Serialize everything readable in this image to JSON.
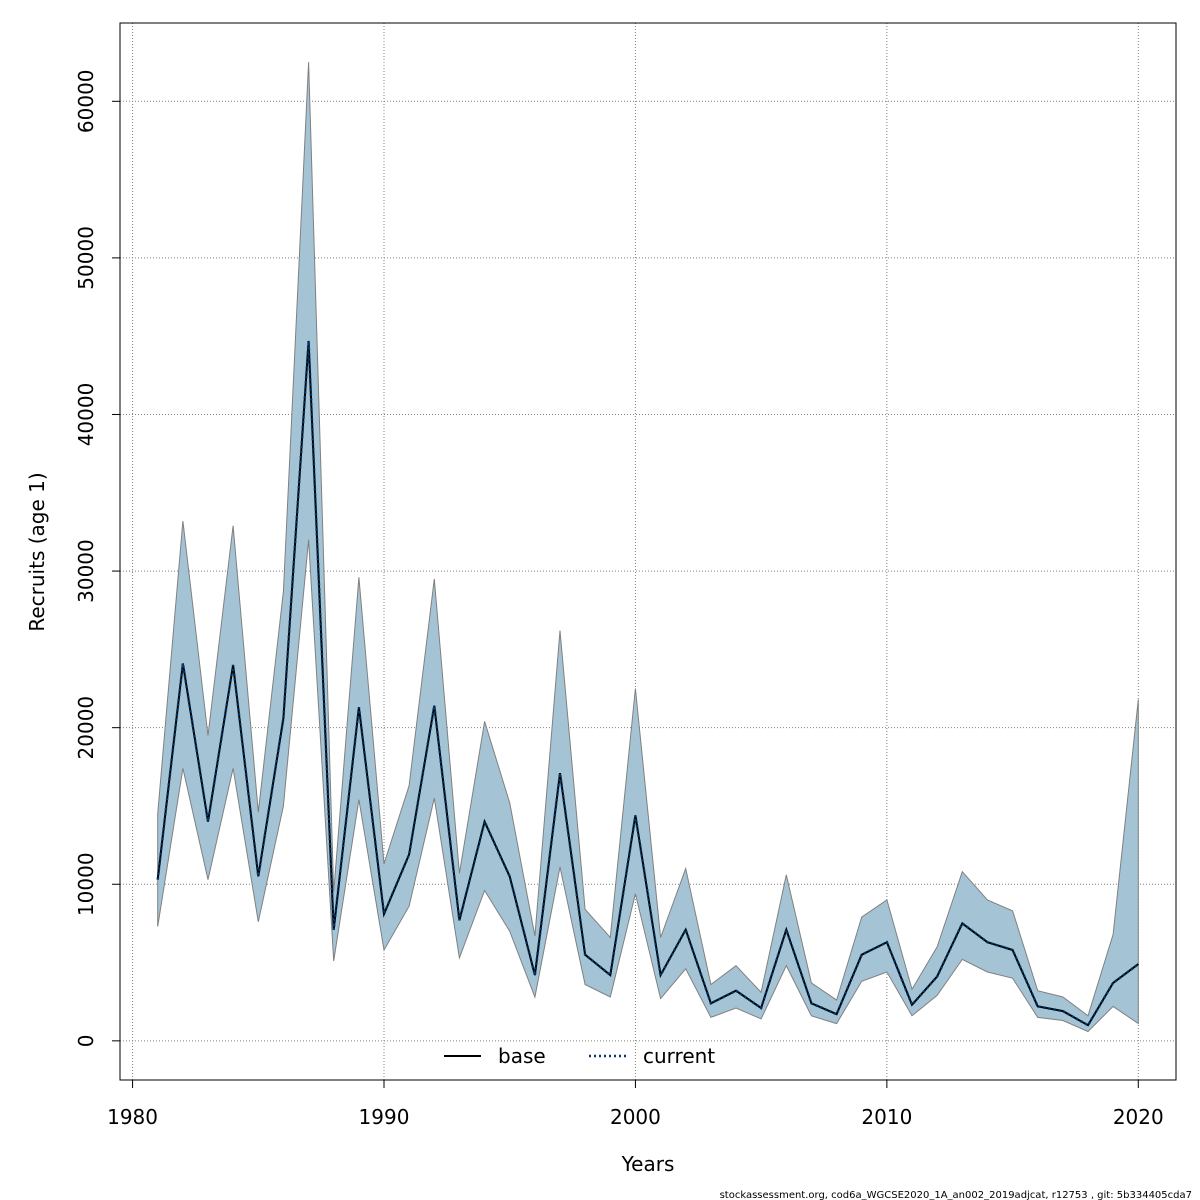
{
  "chart_data": {
    "type": "line",
    "xlabel": "Years",
    "ylabel": "Recruits (age 1)",
    "xlim": [
      1979.5,
      2021.5
    ],
    "ylim": [
      -2500,
      65000
    ],
    "x_ticks": [
      1980,
      1990,
      2000,
      2010,
      2020
    ],
    "y_ticks": [
      0,
      10000,
      20000,
      30000,
      40000,
      50000,
      60000
    ],
    "x_tick_labels": [
      "1980",
      "1990",
      "2000",
      "2010",
      "2020"
    ],
    "y_tick_labels": [
      "0",
      "10000",
      "20000",
      "30000",
      "40000",
      "50000",
      "60000"
    ],
    "grid": true,
    "legend_position": "bottom-center",
    "x": [
      1981,
      1982,
      1983,
      1984,
      1985,
      1986,
      1987,
      1988,
      1989,
      1990,
      1991,
      1992,
      1993,
      1994,
      1995,
      1996,
      1997,
      1998,
      1999,
      2000,
      2001,
      2002,
      2003,
      2004,
      2005,
      2006,
      2007,
      2008,
      2009,
      2010,
      2011,
      2012,
      2013,
      2014,
      2015,
      2016,
      2017,
      2018,
      2019,
      2020
    ],
    "series": [
      {
        "name": "base",
        "values": [
          10300,
          24100,
          14000,
          24000,
          10500,
          20600,
          44700,
          7100,
          21300,
          8100,
          11900,
          21400,
          7700,
          14000,
          10500,
          4200,
          17100,
          5500,
          4200,
          14400,
          4200,
          7100,
          2400,
          3200,
          2100,
          7100,
          2400,
          1700,
          5500,
          6300,
          2300,
          4100,
          7500,
          6300,
          5800,
          2200,
          1900,
          1000,
          3700,
          4900
        ]
      },
      {
        "name": "current",
        "values": [
          10300,
          24100,
          14000,
          24000,
          10500,
          20600,
          44700,
          7100,
          21300,
          8100,
          11900,
          21400,
          7700,
          14000,
          10500,
          4200,
          17100,
          5500,
          4200,
          14400,
          4200,
          7100,
          2400,
          3200,
          2100,
          7100,
          2400,
          1700,
          5500,
          6300,
          2300,
          4100,
          7500,
          6300,
          5800,
          2200,
          1900,
          1000,
          3700,
          4900
        ]
      }
    ],
    "band": {
      "upper": [
        14500,
        33200,
        19500,
        32900,
        14600,
        28700,
        62500,
        9500,
        29600,
        11300,
        16300,
        29500,
        10700,
        20400,
        15200,
        6700,
        26200,
        8400,
        6600,
        22500,
        6600,
        11000,
        3600,
        4800,
        3100,
        10600,
        3700,
        2600,
        7900,
        9000,
        3300,
        6000,
        10800,
        9000,
        8300,
        3200,
        2800,
        1600,
        6800,
        21800
      ],
      "lower": [
        7300,
        17400,
        10300,
        17400,
        7600,
        15000,
        32000,
        5100,
        15400,
        5800,
        8600,
        15500,
        5300,
        9600,
        7000,
        2800,
        11100,
        3600,
        2800,
        9400,
        2700,
        4600,
        1500,
        2100,
        1400,
        4800,
        1600,
        1100,
        3800,
        4400,
        1600,
        2900,
        5200,
        4400,
        4000,
        1500,
        1300,
        600,
        2200,
        1100
      ],
      "fill_color": "#a4c4d5",
      "edge_color": "#808080"
    },
    "line_colors": {
      "base": "#000000",
      "current": "#003a70"
    },
    "footer": "stockassessment.org, cod6a_WGCSE2020_1A_an002_2019adjcat, r12753 , git: 5b334405cda7"
  }
}
